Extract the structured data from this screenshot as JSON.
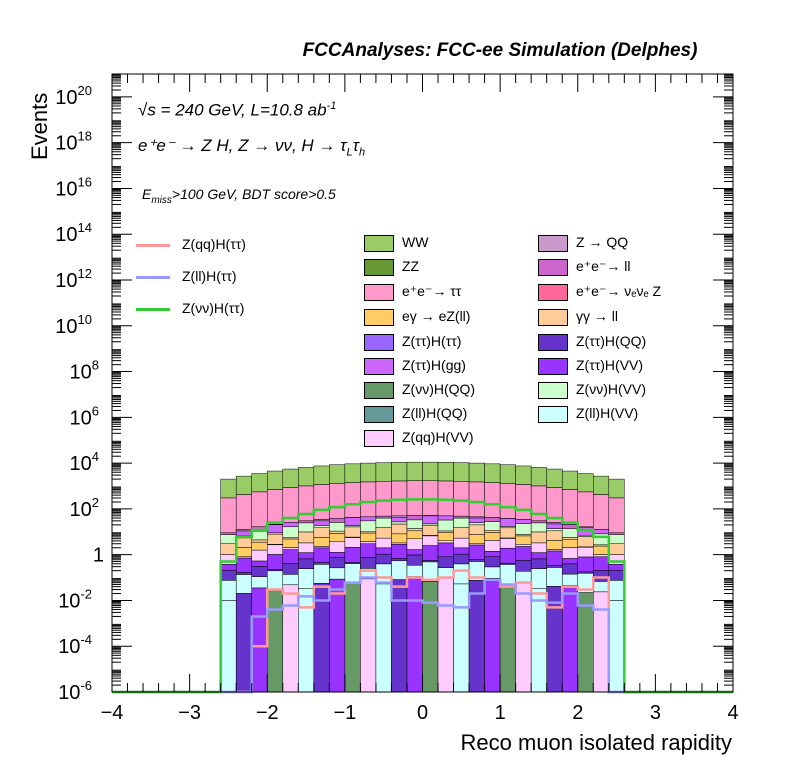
{
  "header": {
    "title": "FCCAnalyses: FCC-ee Simulation (Delphes)"
  },
  "annotations": {
    "energy": "√s = 240 GeV, L=10.8 ab",
    "energy_sup": "-1",
    "process": "e⁺e⁻ → Z H, Z → νν, H → τ",
    "process_sub1": "L",
    "process_mid": "τ",
    "process_sub2": "h",
    "cuts_pre": "E",
    "cuts_sub": "miss",
    "cuts_post": ">100 GeV, BDT score>0.5"
  },
  "colors": {
    "WW": "#99cc66",
    "ZZ": "#669933",
    "ee_tautau": "#ff99cc",
    "ZZTT_ee": "#ff6699",
    "egamma": "#ffcc66",
    "gammagamma": "#ffcc99",
    "Z_QQ": "#cc99cc",
    "ee_ll": "#cc66cc",
    "ZttHtt": "#9966ff",
    "ZttHQQ": "#6633cc",
    "ZttHgg": "#cc66ff",
    "ZttHVV": "#9933ff",
    "ZvvHQQ": "#669966",
    "ZvvHVV": "#ccffcc",
    "ZllHQQ": "#669999",
    "ZllHVV": "#ccffff",
    "ZqqHVV": "#ffccff",
    "sig_qq": "#ff9999",
    "sig_ll": "#9999ff",
    "sig_vv": "#33cc33"
  },
  "chart_data": {
    "type": "bar",
    "stacked": true,
    "xlabel": "Reco muon isolated rapidity",
    "ylabel": "Events",
    "xlim": [
      -4,
      4
    ],
    "ylim": [
      1e-06,
      1e+21
    ],
    "log_y": true,
    "x_ticks": [
      "−4",
      "−3",
      "−2",
      "−1",
      "0",
      "1",
      "2",
      "3",
      "4"
    ],
    "y_ticks": [
      {
        "base": "10",
        "exp": "20",
        "v": 1e+20
      },
      {
        "base": "10",
        "exp": "18",
        "v": 1e+18
      },
      {
        "base": "10",
        "exp": "16",
        "v": 1e+16
      },
      {
        "base": "10",
        "exp": "14",
        "v": 100000000000000.0
      },
      {
        "base": "10",
        "exp": "12",
        "v": 1000000000000.0
      },
      {
        "base": "10",
        "exp": "10",
        "v": 10000000000.0
      },
      {
        "base": "10",
        "exp": "8",
        "v": 100000000.0
      },
      {
        "base": "10",
        "exp": "6",
        "v": 1000000.0
      },
      {
        "base": "10",
        "exp": "4",
        "v": 10000.0
      },
      {
        "base": "10",
        "exp": "2",
        "v": 100
      },
      {
        "base": "1",
        "exp": "",
        "v": 1
      },
      {
        "base": "10",
        "exp": "-2",
        "v": 0.01
      },
      {
        "base": "10",
        "exp": "-4",
        "v": 0.0001
      },
      {
        "base": "10",
        "exp": "-6",
        "v": 1e-06
      }
    ],
    "bin_edges_range": [
      -2.6,
      2.6
    ],
    "n_bins": 26,
    "stack_totals": [
      2000,
      2700,
      3500,
      4500,
      5500,
      6500,
      7500,
      8500,
      9300,
      10000,
      10500,
      10800,
      11000,
      11000,
      10800,
      10500,
      10000,
      9300,
      8500,
      7500,
      6500,
      5500,
      4500,
      3500,
      2700,
      2000
    ],
    "ee_tautau_top": [
      300,
      420,
      550,
      700,
      850,
      1000,
      1150,
      1300,
      1400,
      1500,
      1600,
      1650,
      1700,
      1700,
      1650,
      1600,
      1500,
      1400,
      1300,
      1150,
      1000,
      850,
      700,
      550,
      420,
      300
    ],
    "series": [
      {
        "name": "WW",
        "color_key": "WW",
        "kind": "bkg"
      },
      {
        "name": "ZZ",
        "color_key": "ZZ",
        "kind": "bkg"
      },
      {
        "name": "e⁺e⁻→ ττ",
        "color_key": "ee_tautau",
        "kind": "bkg"
      },
      {
        "name": "eγ → eZ(ll)",
        "color_key": "egamma",
        "kind": "bkg"
      },
      {
        "name": "Z(ττ)H(ττ)",
        "color_key": "ZttHtt",
        "kind": "bkg"
      },
      {
        "name": "Z(ττ)H(gg)",
        "color_key": "ZttHgg",
        "kind": "bkg"
      },
      {
        "name": "Z(νν)H(QQ)",
        "color_key": "ZvvHQQ",
        "kind": "bkg"
      },
      {
        "name": "Z(ll)H(QQ)",
        "color_key": "ZllHQQ",
        "kind": "bkg"
      },
      {
        "name": "Z(qq)H(VV)",
        "color_key": "ZqqHVV",
        "kind": "bkg"
      },
      {
        "name": "Z → QQ",
        "color_key": "Z_QQ",
        "kind": "bkg"
      },
      {
        "name": "e⁺e⁻→ ll",
        "color_key": "ee_ll",
        "kind": "bkg"
      },
      {
        "name": "e⁺e⁻→ νₑνₑ Z",
        "color_key": "ZZTT_ee",
        "kind": "bkg"
      },
      {
        "name": "γγ → ll",
        "color_key": "gammagamma",
        "kind": "bkg"
      },
      {
        "name": "Z(ττ)H(QQ)",
        "color_key": "ZttHQQ",
        "kind": "bkg"
      },
      {
        "name": "Z(ττ)H(VV)",
        "color_key": "ZttHVV",
        "kind": "bkg"
      },
      {
        "name": "Z(νν)H(VV)",
        "color_key": "ZvvHVV",
        "kind": "bkg"
      },
      {
        "name": "Z(ll)H(VV)",
        "color_key": "ZllHVV",
        "kind": "bkg"
      },
      {
        "name": "Z(qq)H(ττ)",
        "color_key": "sig_qq",
        "kind": "signal"
      },
      {
        "name": "Z(ll)H(ττ)",
        "color_key": "sig_ll",
        "kind": "signal"
      },
      {
        "name": "Z(νν)H(ττ)",
        "color_key": "sig_vv",
        "kind": "signal"
      }
    ],
    "signal_vv": [
      0.5,
      6,
      12,
      25,
      40,
      60,
      90,
      120,
      160,
      200,
      230,
      250,
      260,
      260,
      250,
      230,
      200,
      160,
      120,
      90,
      60,
      40,
      25,
      12,
      6,
      0.5
    ],
    "signal_ll": [
      1e-06,
      1e-06,
      0.002,
      0.004,
      0.006,
      0.015,
      0.01,
      0.03,
      0.06,
      0.1,
      0.06,
      0.01,
      0.01,
      0.008,
      0.006,
      0.005,
      0.02,
      0.08,
      0.05,
      0.02,
      0.01,
      0.008,
      0.02,
      0.006,
      0.004,
      1e-06
    ],
    "signal_qq": [
      1e-06,
      1e-06,
      0.0001,
      0.03,
      0.02,
      0.005,
      0.04,
      0.02,
      0.06,
      0.2,
      0.1,
      0.04,
      0.1,
      0.08,
      0.1,
      0.2,
      0.1,
      0.08,
      0.04,
      0.06,
      0.02,
      0.005,
      0.04,
      0.03,
      0.1,
      1e-06
    ]
  }
}
